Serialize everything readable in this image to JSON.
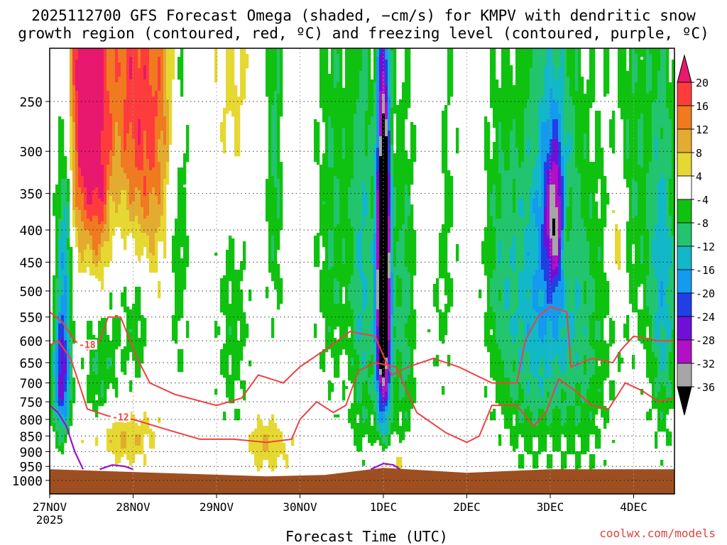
{
  "title": {
    "line1": "2025112700 GFS Forecast Omega (shaded, −cm/s) for KMPV with dendritic snow",
    "line2": "growth region (contoured, red, ºC) and freezing level (contoured, purple, ºC)"
  },
  "chart_data": {
    "type": "heatmap",
    "xlabel": "Forecast Time (UTC)",
    "ylabel": "Pressure (hPa)",
    "x_range_days": [
      0,
      7.5
    ],
    "y_range_hpa": [
      200,
      1050
    ],
    "x_ticks": [
      {
        "day": 0,
        "label": "27NOV",
        "sub": "2025"
      },
      {
        "day": 1,
        "label": "28NOV"
      },
      {
        "day": 2,
        "label": "29NOV"
      },
      {
        "day": 3,
        "label": "30NOV"
      },
      {
        "day": 4,
        "label": "1DEC"
      },
      {
        "day": 5,
        "label": "2DEC"
      },
      {
        "day": 6,
        "label": "3DEC"
      },
      {
        "day": 7,
        "label": "4DEC"
      }
    ],
    "y_ticks": [
      250,
      300,
      350,
      400,
      450,
      500,
      550,
      600,
      650,
      700,
      750,
      800,
      850,
      900,
      950,
      1000
    ],
    "surface_pressure_hpa": 960,
    "colorbar": {
      "labels": [
        "20",
        "16",
        "12",
        "8",
        "4",
        "-4",
        "-8",
        "-12",
        "-16",
        "-20",
        "-24",
        "-28",
        "-32",
        "-36"
      ],
      "bins": [
        {
          "lo": 20,
          "hi": null,
          "color": "#e8186e"
        },
        {
          "lo": 16,
          "hi": 20,
          "color": "#ff3c3c"
        },
        {
          "lo": 12,
          "hi": 16,
          "color": "#f07a20"
        },
        {
          "lo": 8,
          "hi": 12,
          "color": "#e3ac30"
        },
        {
          "lo": 4,
          "hi": 8,
          "color": "#e6d832"
        },
        {
          "lo": -4,
          "hi": 4,
          "color": "#ffffff"
        },
        {
          "lo": -8,
          "hi": -4,
          "color": "#10c210"
        },
        {
          "lo": -12,
          "hi": -8,
          "color": "#22c46e"
        },
        {
          "lo": -16,
          "hi": -12,
          "color": "#12b8c8"
        },
        {
          "lo": -20,
          "hi": -16,
          "color": "#149aee"
        },
        {
          "lo": -24,
          "hi": -20,
          "color": "#2040e6"
        },
        {
          "lo": -28,
          "hi": -24,
          "color": "#7010d6"
        },
        {
          "lo": -32,
          "hi": -28,
          "color": "#b010c6"
        },
        {
          "lo": -36,
          "hi": -32,
          "color": "#a6a6a6"
        },
        {
          "lo": null,
          "hi": -36,
          "color": "#000000"
        }
      ]
    },
    "omega_blobs": [
      {
        "day": 0.4,
        "hpa": 250,
        "sd": 0.12,
        "sp": 120,
        "amp": 24
      },
      {
        "day": 0.6,
        "hpa": 330,
        "sd": 0.1,
        "sp": 150,
        "amp": 18
      },
      {
        "day": 0.9,
        "hpa": 230,
        "sd": 0.18,
        "sp": 110,
        "amp": 14
      },
      {
        "day": 1.15,
        "hpa": 300,
        "sd": 0.15,
        "sp": 150,
        "amp": 12
      },
      {
        "day": 1.35,
        "hpa": 250,
        "sd": 0.12,
        "sp": 90,
        "amp": 8
      },
      {
        "day": 0.2,
        "hpa": 600,
        "sd": 0.12,
        "sp": 150,
        "amp": 6
      },
      {
        "day": 0.85,
        "hpa": 850,
        "sd": 0.3,
        "sp": 60,
        "amp": 9
      },
      {
        "day": 2.2,
        "hpa": 230,
        "sd": 0.15,
        "sp": 100,
        "amp": 7
      },
      {
        "day": 2.6,
        "hpa": 880,
        "sd": 0.2,
        "sp": 60,
        "amp": 8
      },
      {
        "day": 4.1,
        "hpa": 930,
        "sd": 0.2,
        "sp": 40,
        "amp": 7
      },
      {
        "day": 4.6,
        "hpa": 300,
        "sd": 0.1,
        "sp": 120,
        "amp": 6
      },
      {
        "day": 6.8,
        "hpa": 420,
        "sd": 0.07,
        "sp": 80,
        "amp": 10
      },
      {
        "day": 6.2,
        "hpa": 420,
        "sd": 0.05,
        "sp": 60,
        "amp": 9
      },
      {
        "day": 0.15,
        "hpa": 680,
        "sd": 0.08,
        "sp": 120,
        "amp": -30
      },
      {
        "day": 0.18,
        "hpa": 420,
        "sd": 0.07,
        "sp": 120,
        "amp": -16
      },
      {
        "day": 0.6,
        "hpa": 600,
        "sd": 0.15,
        "sp": 180,
        "amp": -10
      },
      {
        "day": 1.05,
        "hpa": 550,
        "sd": 0.12,
        "sp": 120,
        "amp": -8
      },
      {
        "day": 1.55,
        "hpa": 400,
        "sd": 0.08,
        "sp": 200,
        "amp": -7
      },
      {
        "day": 2.2,
        "hpa": 560,
        "sd": 0.15,
        "sp": 200,
        "amp": -6
      },
      {
        "day": 2.7,
        "hpa": 300,
        "sd": 0.07,
        "sp": 180,
        "amp": -9
      },
      {
        "day": 3.4,
        "hpa": 380,
        "sd": 0.15,
        "sp": 250,
        "amp": -8
      },
      {
        "day": 3.75,
        "hpa": 480,
        "sd": 0.1,
        "sp": 300,
        "amp": -12
      },
      {
        "day": 4.0,
        "hpa": 420,
        "sd": 0.055,
        "sp": 180,
        "amp": -48
      },
      {
        "day": 4.0,
        "hpa": 620,
        "sd": 0.07,
        "sp": 180,
        "amp": -20
      },
      {
        "day": 4.25,
        "hpa": 550,
        "sd": 0.1,
        "sp": 250,
        "amp": -10
      },
      {
        "day": 4.7,
        "hpa": 350,
        "sd": 0.12,
        "sp": 220,
        "amp": -7
      },
      {
        "day": 5.4,
        "hpa": 450,
        "sd": 0.15,
        "sp": 200,
        "amp": -8
      },
      {
        "day": 5.7,
        "hpa": 600,
        "sd": 0.2,
        "sp": 220,
        "amp": -8
      },
      {
        "day": 6.0,
        "hpa": 400,
        "sd": 0.22,
        "sp": 250,
        "amp": -14
      },
      {
        "day": 6.05,
        "hpa": 380,
        "sd": 0.08,
        "sp": 70,
        "amp": -20
      },
      {
        "day": 6.4,
        "hpa": 600,
        "sd": 0.25,
        "sp": 250,
        "amp": -8
      },
      {
        "day": 7.0,
        "hpa": 300,
        "sd": 0.2,
        "sp": 200,
        "amp": -7
      },
      {
        "day": 7.35,
        "hpa": 500,
        "sd": 0.12,
        "sp": 220,
        "amp": -14
      }
    ],
    "dgz_contours": [
      {
        "label": "-18",
        "label_pos": [
          0.45,
          610
        ],
        "points": [
          [
            0,
            540
          ],
          [
            0.15,
            560
          ],
          [
            0.3,
            600
          ],
          [
            0.45,
            620
          ],
          [
            0.6,
            600
          ],
          [
            0.7,
            550
          ],
          [
            0.85,
            550
          ],
          [
            1.05,
            640
          ],
          [
            1.2,
            700
          ],
          [
            1.5,
            730
          ],
          [
            2.0,
            760
          ],
          [
            2.3,
            740
          ],
          [
            2.5,
            680
          ],
          [
            2.8,
            700
          ],
          [
            3.0,
            660
          ],
          [
            3.3,
            620
          ],
          [
            3.6,
            580
          ],
          [
            3.9,
            590
          ],
          [
            4.1,
            680
          ],
          [
            4.3,
            660
          ],
          [
            4.6,
            640
          ],
          [
            4.9,
            660
          ],
          [
            5.3,
            700
          ],
          [
            5.6,
            700
          ],
          [
            5.7,
            600
          ],
          [
            5.85,
            550
          ],
          [
            6.0,
            530
          ],
          [
            6.2,
            540
          ],
          [
            6.25,
            660
          ],
          [
            6.5,
            640
          ],
          [
            6.75,
            650
          ],
          [
            6.85,
            620
          ],
          [
            7.0,
            590
          ],
          [
            7.3,
            600
          ],
          [
            7.5,
            600
          ]
        ]
      },
      {
        "label": "-12",
        "label_pos": [
          0.85,
          795
        ],
        "points": [
          [
            0,
            610
          ],
          [
            0.1,
            600
          ],
          [
            0.25,
            640
          ],
          [
            0.35,
            700
          ],
          [
            0.45,
            770
          ],
          [
            0.7,
            790
          ],
          [
            1.0,
            800
          ],
          [
            1.4,
            830
          ],
          [
            1.8,
            860
          ],
          [
            2.2,
            860
          ],
          [
            2.6,
            870
          ],
          [
            2.9,
            860
          ],
          [
            3.0,
            800
          ],
          [
            3.2,
            750
          ],
          [
            3.4,
            780
          ],
          [
            3.55,
            760
          ],
          [
            3.7,
            670
          ],
          [
            3.9,
            650
          ],
          [
            4.15,
            660
          ],
          [
            4.4,
            780
          ],
          [
            4.75,
            840
          ],
          [
            5.0,
            870
          ],
          [
            5.15,
            850
          ],
          [
            5.3,
            760
          ],
          [
            5.6,
            760
          ],
          [
            5.8,
            820
          ],
          [
            5.95,
            780
          ],
          [
            6.1,
            690
          ],
          [
            6.3,
            720
          ],
          [
            6.5,
            760
          ],
          [
            6.7,
            770
          ],
          [
            6.9,
            700
          ],
          [
            7.1,
            720
          ],
          [
            7.3,
            750
          ],
          [
            7.5,
            740
          ]
        ]
      }
    ],
    "freezing_contours": [
      {
        "label": "0",
        "points": [
          [
            0,
            760
          ],
          [
            0.1,
            780
          ],
          [
            0.2,
            820
          ],
          [
            0.3,
            900
          ],
          [
            0.4,
            960
          ]
        ]
      },
      {
        "label": "0",
        "points": [
          [
            0.6,
            960
          ],
          [
            0.75,
            945
          ],
          [
            0.9,
            950
          ],
          [
            1.0,
            960
          ]
        ]
      },
      {
        "label": "0",
        "points": [
          [
            3.85,
            960
          ],
          [
            4.0,
            940
          ],
          [
            4.12,
            945
          ],
          [
            4.2,
            960
          ]
        ]
      }
    ]
  },
  "watermark": "coolwx.com/models"
}
